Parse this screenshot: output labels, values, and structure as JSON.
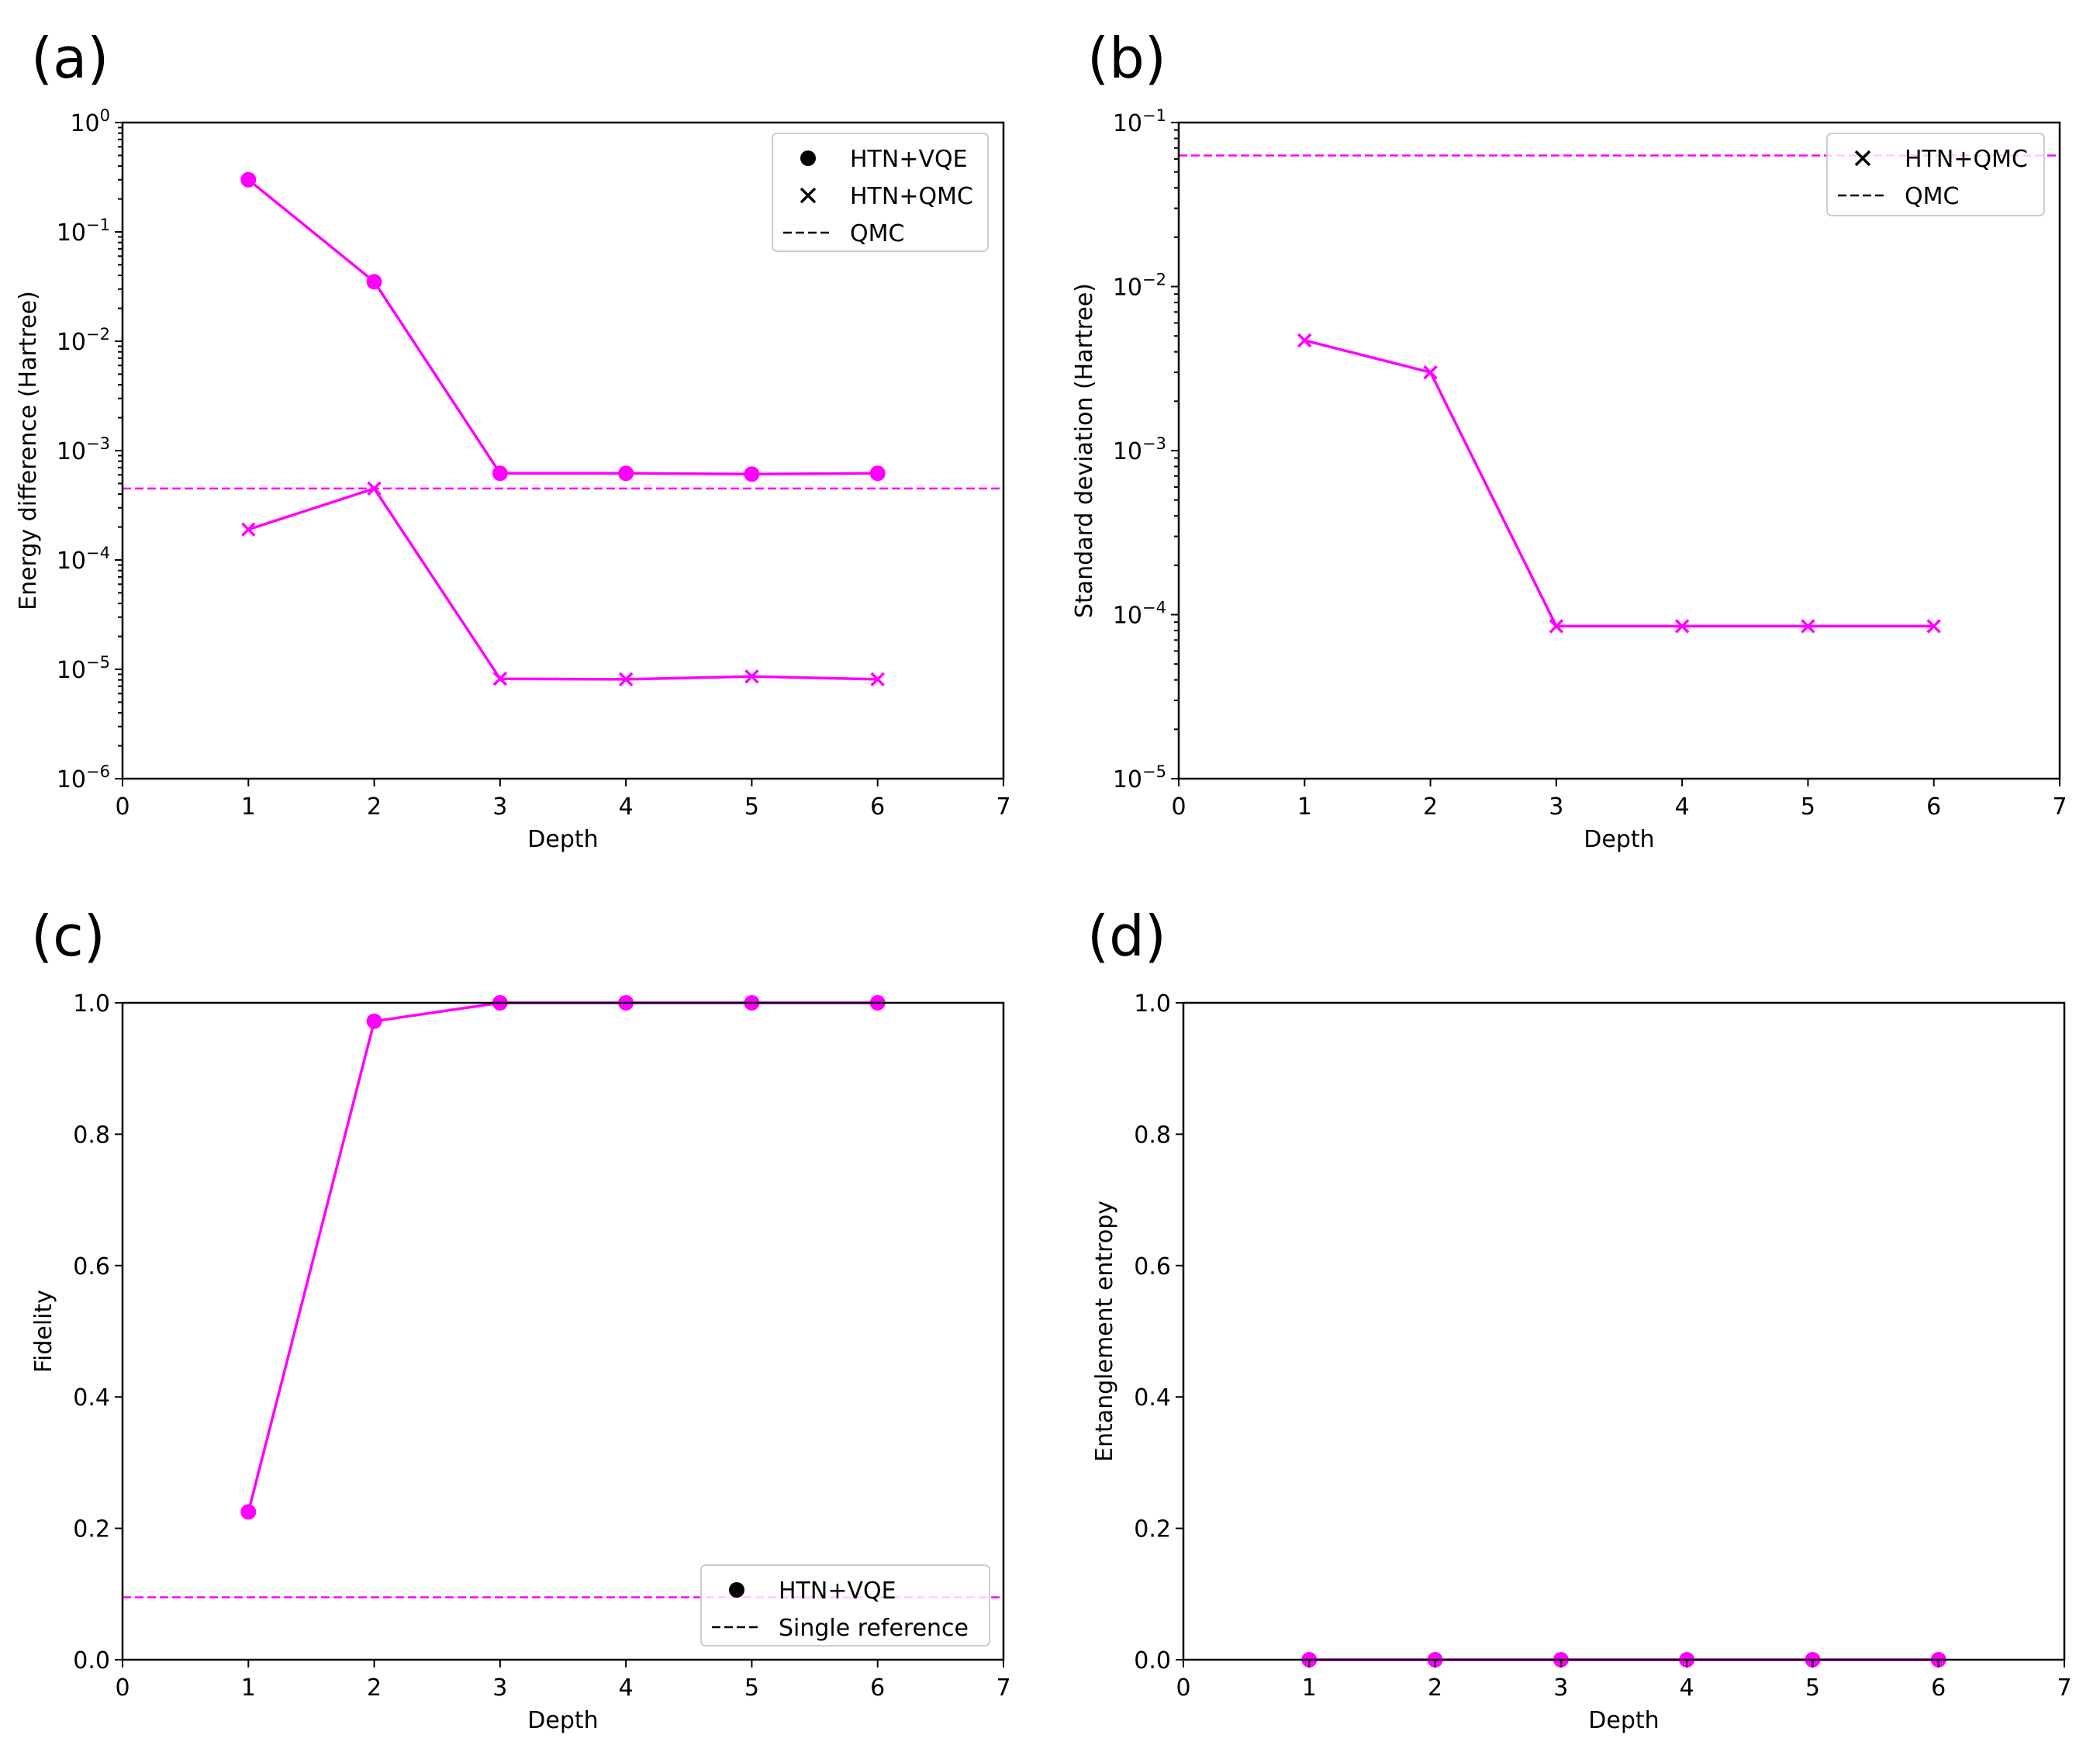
{
  "colors": {
    "series": "#ff00ff",
    "axis": "#000000",
    "legend_marker": "#000000"
  },
  "chart_data": [
    {
      "panel": "(a)",
      "type": "line",
      "yscale": "log",
      "xlabel": "Depth",
      "ylabel": "Energy difference (Hartree)",
      "xlim": [
        0,
        7
      ],
      "ylim": [
        1e-06,
        1
      ],
      "xticks": [
        0,
        1,
        2,
        3,
        4,
        5,
        6,
        7
      ],
      "yticks": [
        {
          "value": 1e-06,
          "base": "10",
          "exp": "−6"
        },
        {
          "value": 1e-05,
          "base": "10",
          "exp": "−5"
        },
        {
          "value": 0.0001,
          "base": "10",
          "exp": "−4"
        },
        {
          "value": 0.001,
          "base": "10",
          "exp": "−3"
        },
        {
          "value": 0.01,
          "base": "10",
          "exp": "−2"
        },
        {
          "value": 0.1,
          "base": "10",
          "exp": "−1"
        },
        {
          "value": 1,
          "base": "10",
          "exp": "0"
        }
      ],
      "series": [
        {
          "name": "HTN+VQE",
          "marker": "circle",
          "x": [
            1,
            2,
            3,
            4,
            5,
            6
          ],
          "values": [
            0.3,
            0.035,
            0.00062,
            0.00062,
            0.00061,
            0.00062
          ]
        },
        {
          "name": "HTN+QMC",
          "marker": "x",
          "x": [
            1,
            2,
            3,
            4,
            5,
            6
          ],
          "values": [
            0.00019,
            0.00045,
            8.2e-06,
            8.1e-06,
            8.6e-06,
            8.1e-06
          ]
        }
      ],
      "reference": {
        "name": "QMC",
        "value": 0.00045
      },
      "legend": {
        "location": "upper right",
        "entries": [
          {
            "label": "HTN+VQE",
            "marker": "circle"
          },
          {
            "label": "HTN+QMC",
            "marker": "x"
          },
          {
            "label": "QMC",
            "marker": "dashed"
          }
        ]
      }
    },
    {
      "panel": "(b)",
      "type": "line",
      "yscale": "log",
      "xlabel": "Depth",
      "ylabel": "Standard deviation (Hartree)",
      "xlim": [
        0,
        7
      ],
      "ylim": [
        1e-05,
        0.1
      ],
      "xticks": [
        0,
        1,
        2,
        3,
        4,
        5,
        6,
        7
      ],
      "yticks": [
        {
          "value": 1e-05,
          "base": "10",
          "exp": "−5"
        },
        {
          "value": 0.0001,
          "base": "10",
          "exp": "−4"
        },
        {
          "value": 0.001,
          "base": "10",
          "exp": "−3"
        },
        {
          "value": 0.01,
          "base": "10",
          "exp": "−2"
        },
        {
          "value": 0.1,
          "base": "10",
          "exp": "−1"
        }
      ],
      "series": [
        {
          "name": "HTN+QMC",
          "marker": "x",
          "x": [
            1,
            2,
            3,
            4,
            5,
            6
          ],
          "values": [
            0.0047,
            0.003,
            8.5e-05,
            8.5e-05,
            8.5e-05,
            8.5e-05
          ]
        }
      ],
      "reference": {
        "name": "QMC",
        "value": 0.063
      },
      "legend": {
        "location": "upper right",
        "entries": [
          {
            "label": "HTN+QMC",
            "marker": "x"
          },
          {
            "label": "QMC",
            "marker": "dashed"
          }
        ]
      }
    },
    {
      "panel": "(c)",
      "type": "line",
      "yscale": "linear",
      "xlabel": "Depth",
      "ylabel": "Fidelity",
      "xlim": [
        0,
        7
      ],
      "ylim": [
        0,
        1
      ],
      "xticks": [
        0,
        1,
        2,
        3,
        4,
        5,
        6,
        7
      ],
      "yticks": [
        {
          "value": 0,
          "label": "0.0"
        },
        {
          "value": 0.2,
          "label": "0.2"
        },
        {
          "value": 0.4,
          "label": "0.4"
        },
        {
          "value": 0.6,
          "label": "0.6"
        },
        {
          "value": 0.8,
          "label": "0.8"
        },
        {
          "value": 1,
          "label": "1.0"
        }
      ],
      "series": [
        {
          "name": "HTN+VQE",
          "marker": "circle",
          "x": [
            1,
            2,
            3,
            4,
            5,
            6
          ],
          "values": [
            0.225,
            0.972,
            1.0,
            1.0,
            1.0,
            1.0
          ]
        }
      ],
      "reference": {
        "name": "Single reference",
        "value": 0.095
      },
      "legend": {
        "location": "lower right",
        "entries": [
          {
            "label": "HTN+VQE",
            "marker": "circle"
          },
          {
            "label": "Single reference",
            "marker": "dashed"
          }
        ]
      }
    },
    {
      "panel": "(d)",
      "type": "line",
      "yscale": "linear",
      "xlabel": "Depth",
      "ylabel": "Entanglement entropy",
      "xlim": [
        0,
        7
      ],
      "ylim": [
        0,
        1
      ],
      "xticks": [
        0,
        1,
        2,
        3,
        4,
        5,
        6,
        7
      ],
      "yticks": [
        {
          "value": 0,
          "label": "0.0"
        },
        {
          "value": 0.2,
          "label": "0.2"
        },
        {
          "value": 0.4,
          "label": "0.4"
        },
        {
          "value": 0.6,
          "label": "0.6"
        },
        {
          "value": 0.8,
          "label": "0.8"
        },
        {
          "value": 1,
          "label": "1.0"
        }
      ],
      "series": [
        {
          "name": "HTN+VQE",
          "marker": "circle",
          "x": [
            1,
            2,
            3,
            4,
            5,
            6
          ],
          "values": [
            0,
            0,
            0,
            0,
            0,
            0
          ]
        }
      ],
      "reference": null,
      "legend": null
    }
  ]
}
